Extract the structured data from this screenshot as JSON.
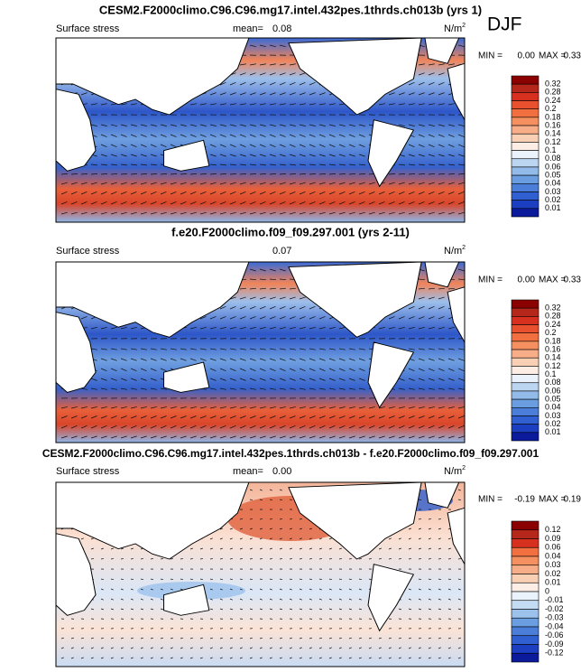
{
  "season": "DJF",
  "panels": [
    {
      "title": "CESM2.F2000climo.C96.C96.mg17.intel.432pes.1thrds.ch013b (yrs 1)",
      "variable": "Surface stress",
      "mean_label": "mean=",
      "mean": "0.08",
      "units": "N/m",
      "units_exponent": "2",
      "min_label": "MIN =",
      "min": "0.00",
      "max_label": "MAX =",
      "max": "0.33",
      "colorbar": {
        "labels": [
          "0.32",
          "0.28",
          "0.24",
          "0.2",
          "0.18",
          "0.16",
          "0.14",
          "0.12",
          "0.1",
          "0.08",
          "0.06",
          "0.05",
          "0.04",
          "0.03",
          "0.02",
          "0.01"
        ],
        "colors": [
          "#8b0000",
          "#b5261b",
          "#d7301f",
          "#e8502e",
          "#f2703f",
          "#f59060",
          "#f7ad87",
          "#fad0b5",
          "#fdeee5",
          "#eaf2fb",
          "#bcd6f1",
          "#93bbe9",
          "#6a9ee0",
          "#4a7ed8",
          "#2f5fd0",
          "#1c3ec0",
          "#0a1a9a"
        ]
      }
    },
    {
      "title": "f.e20.F2000climo.f09_f09.297.001 (yrs 2-11)",
      "variable": "Surface stress",
      "mean": "0.07",
      "units": "N/m",
      "units_exponent": "2",
      "min_label": "MIN =",
      "min": "0.00",
      "max_label": "MAX =",
      "max": "0.33",
      "colorbar": {
        "labels": [
          "0.32",
          "0.28",
          "0.24",
          "0.2",
          "0.18",
          "0.16",
          "0.14",
          "0.12",
          "0.1",
          "0.08",
          "0.06",
          "0.05",
          "0.04",
          "0.03",
          "0.02",
          "0.01"
        ],
        "colors": [
          "#8b0000",
          "#b5261b",
          "#d7301f",
          "#e8502e",
          "#f2703f",
          "#f59060",
          "#f7ad87",
          "#fad0b5",
          "#fdeee5",
          "#eaf2fb",
          "#bcd6f1",
          "#93bbe9",
          "#6a9ee0",
          "#4a7ed8",
          "#2f5fd0",
          "#1c3ec0",
          "#0a1a9a"
        ]
      }
    },
    {
      "title": "CESM2.F2000climo.C96.C96.mg17.intel.432pes.1thrds.ch013b - f.e20.F2000climo.f09_f09.297.001",
      "variable": "Surface stress",
      "mean_label": "mean=",
      "mean": "0.00",
      "units": "N/m",
      "units_exponent": "2",
      "min_label": "MIN =",
      "min": "-0.19",
      "max_label": "MAX =",
      "max": "0.19",
      "colorbar": {
        "labels": [
          "0.12",
          "0.09",
          "0.06",
          "0.04",
          "0.03",
          "0.02",
          "0.01",
          "0",
          "-0.01",
          "-0.02",
          "-0.03",
          "-0.04",
          "-0.06",
          "-0.09",
          "-0.12"
        ],
        "colors": [
          "#8b0000",
          "#b5261b",
          "#d7301f",
          "#f2703f",
          "#f59060",
          "#f7ad87",
          "#fad0b5",
          "#fdeee5",
          "#eaf2fb",
          "#c4dcf3",
          "#9cc2ec",
          "#6a9ee0",
          "#4a7ed8",
          "#2f5fd0",
          "#1c3ec0",
          "#0a1a9a"
        ]
      }
    }
  ]
}
